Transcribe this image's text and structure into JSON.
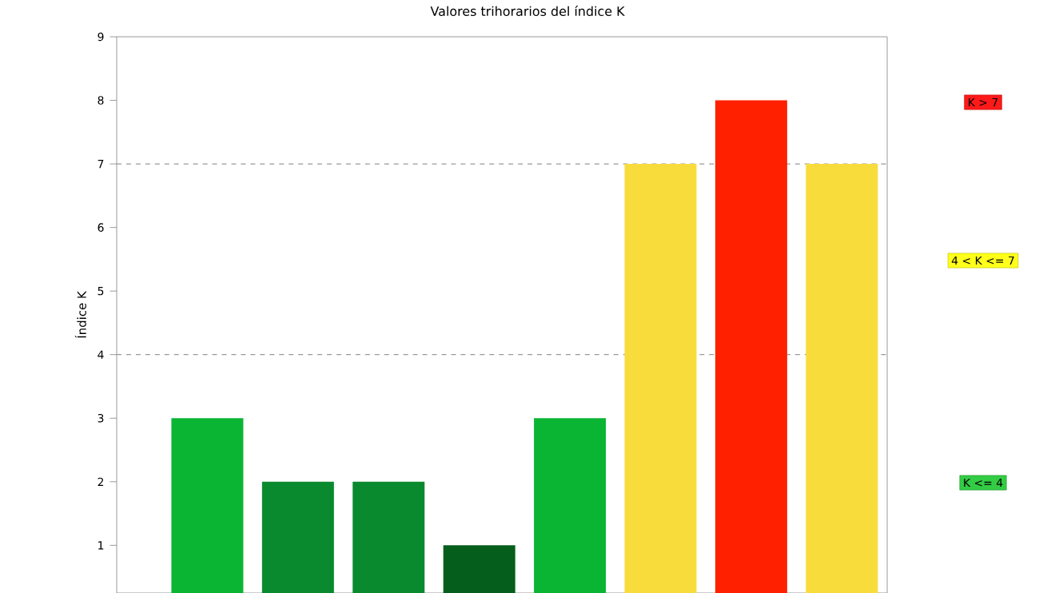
{
  "chart_data": {
    "type": "bar",
    "title": "Valores trihorarios del índice K",
    "ylabel": "Índice K",
    "categories": [
      null,
      null,
      null,
      null,
      null,
      null,
      null,
      null
    ],
    "values": [
      3,
      2,
      2,
      1,
      3,
      7,
      8,
      7
    ],
    "colors": [
      "#0bb534",
      "#0a8a2e",
      "#0a8a2e",
      "#055e1b",
      "#0bb534",
      "#f8dc3c",
      "#ff2000",
      "#f8dc3c"
    ],
    "ylim": [
      0.25,
      9
    ],
    "yticks": [
      1,
      2,
      3,
      4,
      5,
      6,
      7,
      8,
      9
    ],
    "ref_lines": [
      {
        "axis": "y",
        "value": 4,
        "color": "#999999",
        "line_style": "dashed"
      },
      {
        "axis": "y",
        "value": 7,
        "color": "#999999",
        "line_style": "dashed"
      }
    ],
    "annotations": [
      "K > 7",
      "4 < K <= 7",
      "K <= 4"
    ]
  }
}
